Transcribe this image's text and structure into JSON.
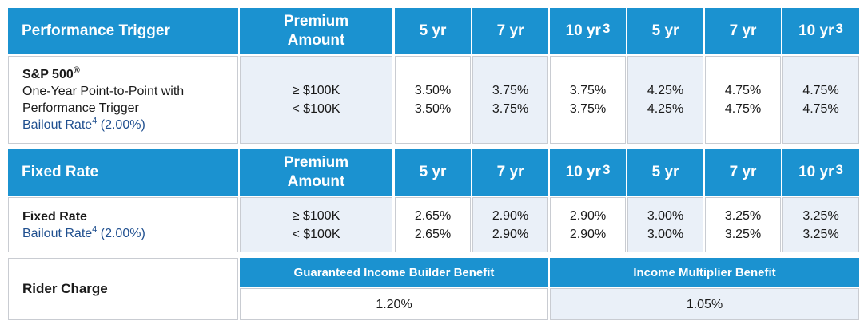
{
  "section1": {
    "header": {
      "title": "Performance Trigger",
      "premium_line1": "Premium",
      "premium_line2": "Amount",
      "terms": [
        "5 yr",
        "7 yr",
        "10 yr",
        "5 yr",
        "7 yr",
        "10 yr"
      ],
      "term_sup": "3"
    },
    "label": {
      "index": "S&P 500",
      "index_mark": "®",
      "desc_line1": "One-Year Point-to-Point with",
      "desc_line2": "Performance Trigger",
      "bailout_text": "Bailout Rate",
      "bailout_sup": "4",
      "bailout_value": "(2.00%)"
    },
    "amounts": [
      "≥ $100K",
      "< $100K"
    ],
    "rates": [
      [
        "3.50%",
        "3.50%"
      ],
      [
        "3.75%",
        "3.75%"
      ],
      [
        "3.75%",
        "3.75%"
      ],
      [
        "4.25%",
        "4.25%"
      ],
      [
        "4.75%",
        "4.75%"
      ],
      [
        "4.75%",
        "4.75%"
      ]
    ]
  },
  "section2": {
    "header": {
      "title": "Fixed Rate",
      "premium_line1": "Premium",
      "premium_line2": "Amount",
      "terms": [
        "5 yr",
        "7 yr",
        "10 yr",
        "5 yr",
        "7 yr",
        "10 yr"
      ],
      "term_sup": "3"
    },
    "label": {
      "title": "Fixed Rate",
      "bailout_text": "Bailout Rate",
      "bailout_sup": "4",
      "bailout_value": "(2.00%)"
    },
    "amounts": [
      "≥ $100K",
      "< $100K"
    ],
    "rates": [
      [
        "2.65%",
        "2.65%"
      ],
      [
        "2.90%",
        "2.90%"
      ],
      [
        "2.90%",
        "2.90%"
      ],
      [
        "3.00%",
        "3.00%"
      ],
      [
        "3.25%",
        "3.25%"
      ],
      [
        "3.25%",
        "3.25%"
      ]
    ]
  },
  "rider": {
    "label": "Rider Charge",
    "benefit1_name": "Guaranteed Income Builder Benefit",
    "benefit1_value": "1.20%",
    "benefit2_name": "Income Multiplier Benefit",
    "benefit2_value": "1.05%"
  },
  "colors": {
    "header_blue": "#1b92d0",
    "cell_gray": "#eaf0f8",
    "link_blue": "#1f4f8f"
  }
}
